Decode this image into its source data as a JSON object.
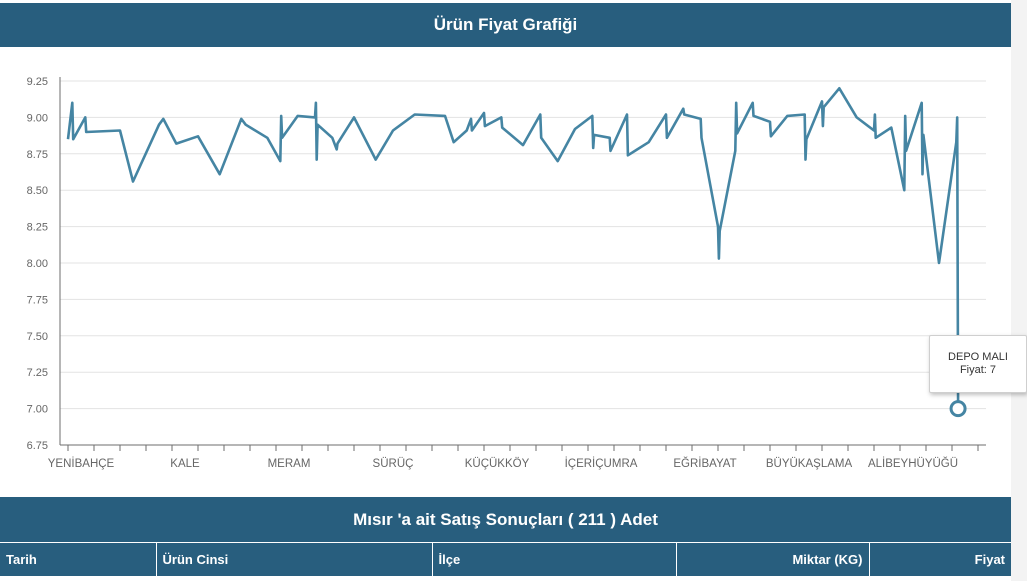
{
  "chart_title": "Ürün Fiyat Grafiği",
  "results_title": "Mısır 'a ait Satış Sonuçları ( 211 ) Adet",
  "table": {
    "columns": [
      "Tarih",
      "Ürün Cinsi",
      "İlçe",
      "Miktar (KG)",
      "Fiyat"
    ]
  },
  "tooltip": {
    "name": "DEPO MALI",
    "value": "Fiyat: 7"
  },
  "colors": {
    "header": "#285e7e",
    "series": "#4585a3"
  },
  "chart_data": {
    "type": "line",
    "title": "Ürün Fiyat Grafiği",
    "xlabel": "",
    "ylabel": "",
    "ylim": [
      6.75,
      9.25
    ],
    "yticks": [
      "6.75",
      "7.00",
      "7.25",
      "7.50",
      "7.75",
      "8.00",
      "8.25",
      "8.50",
      "8.75",
      "9.00",
      "9.25"
    ],
    "grid": true,
    "n_points": 211,
    "category_labels": [
      {
        "label": "YENİBAHÇE",
        "index": 3
      },
      {
        "label": "KALE",
        "index": 27
      },
      {
        "label": "MERAM",
        "index": 51
      },
      {
        "label": "SÜRÜÇ",
        "index": 75
      },
      {
        "label": "KÜÇÜKKÖY",
        "index": 99
      },
      {
        "label": "İÇERİÇUMRA",
        "index": 123
      },
      {
        "label": "EĞRİBAYAT",
        "index": 147
      },
      {
        "label": "BÜYÜKAŞLAMA",
        "index": 171
      },
      {
        "label": "ALİBEYHÜYÜĞÜ",
        "index": 195
      }
    ],
    "series": [
      {
        "name": "Fiyat",
        "points": [
          [
            0,
            8.85
          ],
          [
            1,
            9.1
          ],
          [
            1.2,
            8.85
          ],
          [
            4,
            9.0
          ],
          [
            4.2,
            8.9
          ],
          [
            12,
            8.91
          ],
          [
            15,
            8.56
          ],
          [
            21,
            8.95
          ],
          [
            22,
            8.99
          ],
          [
            25,
            8.82
          ],
          [
            30,
            8.87
          ],
          [
            35,
            8.61
          ],
          [
            40,
            8.99
          ],
          [
            41,
            8.95
          ],
          [
            46,
            8.86
          ],
          [
            49,
            8.7
          ],
          [
            49.2,
            9.01
          ],
          [
            49.4,
            8.86
          ],
          [
            53,
            9.01
          ],
          [
            57,
            9.0
          ],
          [
            57.2,
            9.1
          ],
          [
            57.4,
            8.71
          ],
          [
            57.6,
            8.95
          ],
          [
            61,
            8.86
          ],
          [
            62,
            8.78
          ],
          [
            62.2,
            8.82
          ],
          [
            66,
            9.0
          ],
          [
            71,
            8.71
          ],
          [
            75,
            8.91
          ],
          [
            80,
            9.02
          ],
          [
            87,
            9.01
          ],
          [
            89,
            8.83
          ],
          [
            92,
            8.91
          ],
          [
            93,
            8.99
          ],
          [
            93.2,
            8.91
          ],
          [
            96,
            9.03
          ],
          [
            96.2,
            8.94
          ],
          [
            100,
            9.0
          ],
          [
            100.2,
            8.93
          ],
          [
            105,
            8.81
          ],
          [
            109,
            9.02
          ],
          [
            109.2,
            8.86
          ],
          [
            113,
            8.7
          ],
          [
            117,
            8.92
          ],
          [
            121,
            9.01
          ],
          [
            121.2,
            8.79
          ],
          [
            121.4,
            8.88
          ],
          [
            125,
            8.86
          ],
          [
            125.2,
            8.77
          ],
          [
            129,
            9.02
          ],
          [
            129.2,
            8.74
          ],
          [
            134,
            8.83
          ],
          [
            138,
            9.02
          ],
          [
            138.2,
            8.86
          ],
          [
            142,
            9.06
          ],
          [
            142.2,
            9.02
          ],
          [
            146,
            8.99
          ],
          [
            146.2,
            8.86
          ],
          [
            150,
            8.25
          ],
          [
            150.2,
            8.03
          ],
          [
            150.4,
            8.22
          ],
          [
            154,
            8.77
          ],
          [
            154.2,
            9.1
          ],
          [
            154.4,
            8.89
          ],
          [
            158,
            9.1
          ],
          [
            158.2,
            9.01
          ],
          [
            162,
            8.97
          ],
          [
            162.2,
            8.87
          ],
          [
            166,
            9.01
          ],
          [
            170,
            9.02
          ],
          [
            170.2,
            8.71
          ],
          [
            170.4,
            8.85
          ],
          [
            174,
            9.11
          ],
          [
            174.2,
            8.94
          ],
          [
            174.4,
            9.07
          ],
          [
            178,
            9.2
          ],
          [
            182,
            9.0
          ],
          [
            186,
            8.91
          ],
          [
            186.2,
            9.02
          ],
          [
            186.4,
            8.86
          ],
          [
            190,
            8.93
          ],
          [
            193,
            8.5
          ],
          [
            193.2,
            9.01
          ],
          [
            193.4,
            8.77
          ],
          [
            197,
            9.1
          ],
          [
            197.2,
            8.61
          ],
          [
            197.4,
            8.88
          ],
          [
            201,
            8.0
          ],
          [
            205,
            8.83
          ],
          [
            205.2,
            9.0
          ],
          [
            205.4,
            7.0
          ]
        ]
      }
    ]
  }
}
